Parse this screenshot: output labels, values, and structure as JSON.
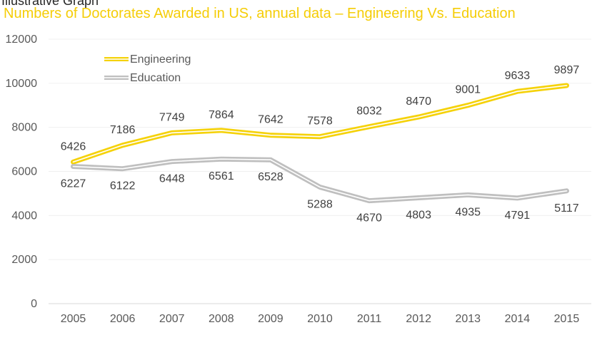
{
  "header": {
    "top_label": "Illustrative Graph",
    "title": "Numbers of Doctorates Awarded in US, annual data – Engineering Vs. Education"
  },
  "chart_data": {
    "type": "line",
    "title": "Numbers of Doctorates Awarded in US, annual data – Engineering Vs. Education",
    "xlabel": "",
    "ylabel": "",
    "categories": [
      "2005",
      "2006",
      "2007",
      "2008",
      "2009",
      "2010",
      "2011",
      "2012",
      "2013",
      "2014",
      "2015"
    ],
    "series": [
      {
        "name": "Engineering",
        "color": "#f5d20a",
        "values": [
          6426,
          7186,
          7749,
          7864,
          7642,
          7578,
          8032,
          8470,
          9001,
          9633,
          9897
        ]
      },
      {
        "name": "Education",
        "color": "#bfbfbf",
        "values": [
          6227,
          6122,
          6448,
          6561,
          6528,
          5288,
          4670,
          4803,
          4935,
          4791,
          5117
        ]
      }
    ],
    "ylim": [
      0,
      12000
    ],
    "yticks": [
      "0",
      "2000",
      "4000",
      "6000",
      "8000",
      "10000",
      "12000"
    ],
    "grid": true,
    "legend": "top-left"
  }
}
